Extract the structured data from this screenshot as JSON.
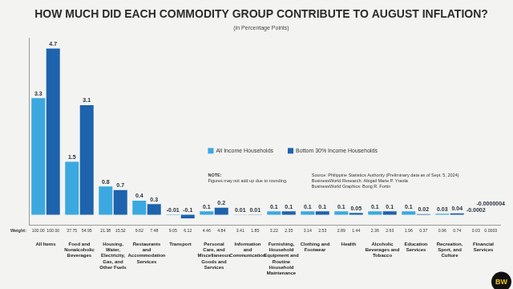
{
  "chart_data": {
    "type": "bar",
    "title": "HOW MUCH DID EACH COMMODITY GROUP CONTRIBUTE TO AUGUST INFLATION?",
    "subtitle": "(in Percentage Points)",
    "categories": [
      "All Items",
      "Food and Nonalcoholic Beverages",
      "Housing, Water, Electricity, Gas, and Other Fuels",
      "Restaurants and Accommodation Services",
      "Transport",
      "Personal Care, and Miscellaneous Goods and Services",
      "Information and Communication",
      "Furnishing, Household Equipment and Routine Household Maintenance",
      "Clothing and Footwear",
      "Health",
      "Alcoholic Beverages and Tobacco",
      "Education Services",
      "Recreation, Sport, and Culture",
      "Financial Services"
    ],
    "series": [
      {
        "name": "All Income Households",
        "color": "#3ba8e0",
        "values": [
          3.3,
          1.5,
          0.8,
          0.4,
          -0.01,
          0.1,
          0.01,
          0.1,
          0.1,
          0.1,
          0.1,
          0.1,
          0.03,
          -0.0002
        ],
        "value_labels": [
          "3.3",
          "1.5",
          "0.8",
          "0.4",
          "-0.01",
          "0.1",
          "0.01",
          "0.1",
          "0.1",
          "0.1",
          "0.1",
          "0.1",
          "0.03",
          "-0.0002"
        ],
        "weights": [
          "100.00",
          "37.75",
          "21.38",
          "9.62",
          "9.05",
          "4.46",
          "3.41",
          "3.22",
          "3.14",
          "2.89",
          "2.36",
          "1.96",
          "0.96",
          "0.03"
        ]
      },
      {
        "name": "Bottom 30% Income Households",
        "color": "#1d63ad",
        "values": [
          4.7,
          3.1,
          0.7,
          0.3,
          -0.1,
          0.2,
          0.01,
          0.1,
          0.1,
          0.05,
          0.1,
          0.02,
          0.04,
          -4e-07
        ],
        "value_labels": [
          "4.7",
          "3.1",
          "0.7",
          "0.3",
          "-0.1",
          "0.2",
          "0.01",
          "0.1",
          "0.1",
          "0.05",
          "0.1",
          "0.02",
          "0.04",
          "-0.0000004"
        ],
        "weights": [
          "100.00",
          "54.95",
          "15.52",
          "7.48",
          "6.12",
          "4.84",
          "1.85",
          "2.35",
          "2.53",
          "1.44",
          "2.63",
          "0.37",
          "0.74",
          "0.0003"
        ]
      }
    ],
    "weight_label": "Weight:",
    "note": [
      "NOTE:",
      "Figures may not add up due to rounding."
    ],
    "source": [
      "Source: Philippine Statistics Authority (Preliminary data as of Sept. 5, 2024)",
      "BusinessWorld Research: Abigail Marie P. Yraola",
      "BusinessWorld Graphics: Bong R. Fortin"
    ],
    "logo": "BW",
    "ylim": [
      -0.3,
      5
    ],
    "grid": false,
    "legend": "center",
    "data_labels": true,
    "tick_labels": "x"
  }
}
